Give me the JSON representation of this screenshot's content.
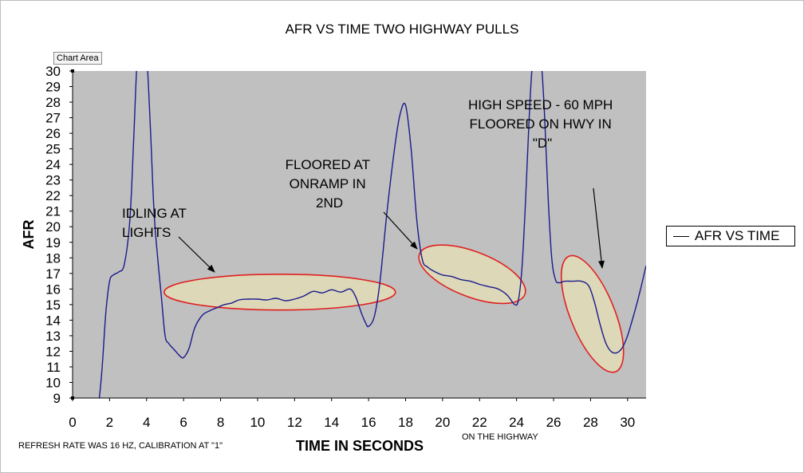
{
  "app": {
    "tooltip": "Chart Area"
  },
  "chart_data": {
    "type": "line",
    "title": "AFR VS TIME TWO HIGHWAY PULLS",
    "xlabel": "TIME IN SECONDS",
    "ylabel": "AFR",
    "xlim": [
      0,
      31
    ],
    "ylim": [
      9,
      30
    ],
    "xticks": [
      0,
      2,
      4,
      6,
      8,
      10,
      12,
      14,
      16,
      18,
      20,
      22,
      24,
      26,
      28,
      30
    ],
    "yticks": [
      9,
      10,
      11,
      12,
      13,
      14,
      15,
      16,
      17,
      18,
      19,
      20,
      21,
      22,
      23,
      24,
      25,
      26,
      27,
      28,
      29,
      30
    ],
    "grid": false,
    "legend": {
      "position": "right",
      "entries": [
        "AFR VS TIME"
      ]
    },
    "colors": {
      "line": "#1a1a8c",
      "plot_bg": "#c0c0c0",
      "ellipse_stroke": "#e02020",
      "ellipse_fill": "#ddd8b8"
    },
    "series": [
      {
        "name": "AFR VS TIME",
        "x": [
          1.45,
          1.6,
          1.8,
          2.0,
          2.2,
          2.5,
          2.8,
          3.1,
          3.3,
          3.5,
          3.65,
          3.8,
          4.0,
          4.2,
          4.4,
          4.6,
          4.8,
          5.0,
          5.2,
          5.5,
          5.8,
          6.0,
          6.3,
          6.6,
          7.0,
          7.4,
          7.8,
          8.2,
          8.6,
          9.0,
          9.5,
          10.0,
          10.5,
          11.0,
          11.5,
          12.0,
          12.5,
          13.0,
          13.5,
          14.0,
          14.5,
          15.0,
          15.3,
          15.6,
          15.85,
          16.0,
          16.3,
          16.6,
          17.0,
          17.4,
          17.7,
          18.0,
          18.3,
          18.6,
          18.9,
          19.2,
          19.6,
          20.0,
          20.5,
          21.0,
          21.5,
          22.0,
          22.5,
          23.0,
          23.5,
          23.9,
          24.1,
          24.3,
          24.5,
          24.7,
          24.9,
          25.1,
          25.3,
          25.5,
          25.7,
          25.9,
          26.1,
          26.3,
          26.6,
          27.0,
          27.5,
          27.9,
          28.2,
          28.5,
          28.8,
          29.1,
          29.4,
          29.7,
          30.0,
          30.3,
          30.6,
          31.0
        ],
        "y": [
          9.0,
          11.0,
          14.5,
          16.5,
          16.9,
          17.1,
          17.6,
          20.5,
          25.5,
          31.0,
          31.0,
          31.0,
          31.0,
          26.5,
          21.0,
          18.0,
          15.5,
          13.0,
          12.5,
          12.1,
          11.7,
          11.6,
          12.2,
          13.5,
          14.3,
          14.6,
          14.8,
          15.0,
          15.1,
          15.3,
          15.35,
          15.35,
          15.3,
          15.4,
          15.25,
          15.35,
          15.55,
          15.85,
          15.75,
          15.95,
          15.8,
          16.0,
          15.5,
          14.5,
          13.8,
          13.6,
          14.2,
          16.3,
          21.0,
          25.0,
          27.2,
          27.8,
          25.0,
          20.5,
          17.9,
          17.4,
          17.1,
          16.9,
          16.8,
          16.6,
          16.5,
          16.3,
          16.15,
          16.0,
          15.6,
          15.0,
          15.3,
          17.5,
          22.0,
          27.5,
          31.0,
          31.0,
          31.0,
          27.5,
          22.0,
          18.0,
          16.6,
          16.4,
          16.5,
          16.5,
          16.5,
          16.2,
          15.2,
          13.8,
          12.6,
          12.0,
          11.9,
          12.2,
          13.0,
          14.2,
          15.5,
          17.5
        ]
      }
    ],
    "annotations": [
      {
        "text": "IDLING AT LIGHTS",
        "lines": [
          "IDLING AT",
          "LIGHTS"
        ]
      },
      {
        "text": "FLOORED AT ONRAMP IN 2ND",
        "lines": [
          "FLOORED AT",
          "ONRAMP IN",
          "2ND"
        ]
      },
      {
        "text": "HIGH SPEED - 60 MPH FLOORED ON HWY IN \"D\"",
        "lines": [
          "HIGH SPEED - 60 MPH",
          "FLOORED ON HWY IN",
          "\"D\""
        ]
      },
      {
        "text": "ON THE HIGHWAY"
      }
    ],
    "footnote": "REFRESH RATE WAS 16 HZ, CALIBRATION AT \"1\""
  }
}
